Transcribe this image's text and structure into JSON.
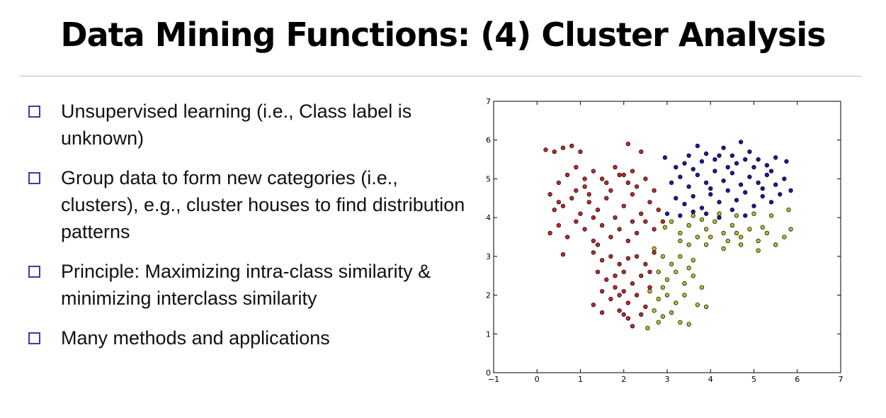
{
  "slide": {
    "title": "Data Mining Functions: (4) Cluster Analysis",
    "bullets": [
      "Unsupervised learning (i.e., Class label is unknown)",
      "Group data to form new categories (i.e., clusters), e.g., cluster houses to find distribution patterns",
      "Principle: Maximizing intra-class similarity & minimizing interclass similarity",
      "Many methods and applications"
    ],
    "bullet_icon": "hollow-square-icon"
  },
  "chart_data": {
    "type": "scatter",
    "title": "",
    "xlabel": "",
    "ylabel": "",
    "xlim": [
      -1,
      7
    ],
    "ylim": [
      0,
      7
    ],
    "xticks": [
      "−1",
      "0",
      "1",
      "2",
      "3",
      "4",
      "5",
      "6",
      "7"
    ],
    "yticks": [
      "0",
      "1",
      "2",
      "3",
      "4",
      "5",
      "6",
      "7"
    ],
    "grid": false,
    "legend": "none",
    "series": [
      {
        "color": "#c0282d",
        "points": [
          [
            0.2,
            5.75
          ],
          [
            0.4,
            5.7
          ],
          [
            0.6,
            5.8
          ],
          [
            0.8,
            5.85
          ],
          [
            1.0,
            5.7
          ],
          [
            2.1,
            5.9
          ],
          [
            2.4,
            5.7
          ],
          [
            0.3,
            4.6
          ],
          [
            0.5,
            4.9
          ],
          [
            0.7,
            5.1
          ],
          [
            0.9,
            5.3
          ],
          [
            1.1,
            4.8
          ],
          [
            1.3,
            5.2
          ],
          [
            1.5,
            5.0
          ],
          [
            1.7,
            4.7
          ],
          [
            1.9,
            5.1
          ],
          [
            2.1,
            4.9
          ],
          [
            2.3,
            4.8
          ],
          [
            2.5,
            5.0
          ],
          [
            0.4,
            4.2
          ],
          [
            0.6,
            4.3
          ],
          [
            0.8,
            4.5
          ],
          [
            1.0,
            4.1
          ],
          [
            1.2,
            4.4
          ],
          [
            1.4,
            4.2
          ],
          [
            1.6,
            4.5
          ],
          [
            1.8,
            4.0
          ],
          [
            2.0,
            4.3
          ],
          [
            2.2,
            4.6
          ],
          [
            2.4,
            4.1
          ],
          [
            2.6,
            4.4
          ],
          [
            0.3,
            3.6
          ],
          [
            0.5,
            3.8
          ],
          [
            0.7,
            3.5
          ],
          [
            0.9,
            3.9
          ],
          [
            1.1,
            3.7
          ],
          [
            1.3,
            3.4
          ],
          [
            1.5,
            3.8
          ],
          [
            1.7,
            3.5
          ],
          [
            1.9,
            3.7
          ],
          [
            2.1,
            3.4
          ],
          [
            2.3,
            3.6
          ],
          [
            2.5,
            3.9
          ],
          [
            2.7,
            3.7
          ],
          [
            2.9,
            3.9
          ],
          [
            0.6,
            3.05
          ],
          [
            1.3,
            3.1
          ],
          [
            1.5,
            2.9
          ],
          [
            1.7,
            3.0
          ],
          [
            1.9,
            2.8
          ],
          [
            2.1,
            2.95
          ],
          [
            2.3,
            3.0
          ],
          [
            2.5,
            2.8
          ],
          [
            2.7,
            3.1
          ],
          [
            1.4,
            2.6
          ],
          [
            1.6,
            2.4
          ],
          [
            1.8,
            2.5
          ],
          [
            2.0,
            2.6
          ],
          [
            2.2,
            2.3
          ],
          [
            2.4,
            2.5
          ],
          [
            2.6,
            2.2
          ],
          [
            1.5,
            2.1
          ],
          [
            1.7,
            1.9
          ],
          [
            1.9,
            2.0
          ],
          [
            2.1,
            1.8
          ],
          [
            2.3,
            2.0
          ],
          [
            2.5,
            1.7
          ],
          [
            1.3,
            1.75
          ],
          [
            1.5,
            1.55
          ],
          [
            1.9,
            1.6
          ],
          [
            2.0,
            1.5
          ],
          [
            2.1,
            1.4
          ],
          [
            2.2,
            1.2
          ],
          [
            2.4,
            1.5
          ],
          [
            1.2,
            4.6
          ],
          [
            1.6,
            4.9
          ],
          [
            1.8,
            5.3
          ],
          [
            2.0,
            5.1
          ],
          [
            0.9,
            4.7
          ],
          [
            1.4,
            3.3
          ],
          [
            2.2,
            3.9
          ],
          [
            1.8,
            2.2
          ],
          [
            2.0,
            2.1
          ],
          [
            2.6,
            2.6
          ],
          [
            1.1,
            5.0
          ],
          [
            1.3,
            4.0
          ],
          [
            0.5,
            4.4
          ],
          [
            2.7,
            4.7
          ],
          [
            2.8,
            4.2
          ],
          [
            2.2,
            5.2
          ]
        ]
      },
      {
        "color": "#1a1aa0",
        "points": [
          [
            2.95,
            5.55
          ],
          [
            3.2,
            5.3
          ],
          [
            3.5,
            5.6
          ],
          [
            3.7,
            5.85
          ],
          [
            3.9,
            5.65
          ],
          [
            4.1,
            5.5
          ],
          [
            4.3,
            5.8
          ],
          [
            4.5,
            5.6
          ],
          [
            4.7,
            5.95
          ],
          [
            4.9,
            5.7
          ],
          [
            5.1,
            5.5
          ],
          [
            5.3,
            5.35
          ],
          [
            5.5,
            5.55
          ],
          [
            5.75,
            5.45
          ],
          [
            3.1,
            4.9
          ],
          [
            3.3,
            5.05
          ],
          [
            3.5,
            4.8
          ],
          [
            3.7,
            5.1
          ],
          [
            3.9,
            4.9
          ],
          [
            4.1,
            5.2
          ],
          [
            4.3,
            4.95
          ],
          [
            4.5,
            5.15
          ],
          [
            4.7,
            4.85
          ],
          [
            4.9,
            5.05
          ],
          [
            5.1,
            4.9
          ],
          [
            5.3,
            5.1
          ],
          [
            5.5,
            4.85
          ],
          [
            5.7,
            5.0
          ],
          [
            3.2,
            4.5
          ],
          [
            3.4,
            4.35
          ],
          [
            3.6,
            4.55
          ],
          [
            3.8,
            4.25
          ],
          [
            4.0,
            4.6
          ],
          [
            4.2,
            4.4
          ],
          [
            4.4,
            4.7
          ],
          [
            4.6,
            4.45
          ],
          [
            4.8,
            4.65
          ],
          [
            5.0,
            4.3
          ],
          [
            5.2,
            4.55
          ],
          [
            5.4,
            4.4
          ],
          [
            5.6,
            4.6
          ],
          [
            5.85,
            4.7
          ],
          [
            3.0,
            4.1
          ],
          [
            3.3,
            4.05
          ],
          [
            3.6,
            4.15
          ],
          [
            3.9,
            4.1
          ],
          [
            4.2,
            4.0
          ],
          [
            4.5,
            4.2
          ],
          [
            4.8,
            4.05
          ],
          [
            3.4,
            5.4
          ],
          [
            3.8,
            5.45
          ],
          [
            4.2,
            5.6
          ],
          [
            4.6,
            5.4
          ],
          [
            5.0,
            5.3
          ],
          [
            5.4,
            5.2
          ],
          [
            4.4,
            5.3
          ],
          [
            3.6,
            5.25
          ],
          [
            4.0,
            4.75
          ],
          [
            4.8,
            5.5
          ],
          [
            5.2,
            4.75
          ]
        ]
      },
      {
        "color": "#b9b931",
        "points": [
          [
            2.95,
            3.75
          ],
          [
            3.1,
            3.9
          ],
          [
            3.3,
            3.6
          ],
          [
            3.5,
            3.8
          ],
          [
            3.7,
            3.5
          ],
          [
            3.9,
            3.7
          ],
          [
            4.1,
            3.9
          ],
          [
            4.3,
            3.6
          ],
          [
            4.5,
            3.8
          ],
          [
            4.7,
            3.5
          ],
          [
            4.9,
            3.7
          ],
          [
            5.1,
            3.4
          ],
          [
            5.3,
            3.6
          ],
          [
            5.5,
            3.3
          ],
          [
            5.7,
            3.5
          ],
          [
            5.85,
            3.7
          ],
          [
            3.6,
            4.05
          ],
          [
            3.8,
            3.95
          ],
          [
            4.2,
            4.1
          ],
          [
            4.6,
            4.05
          ],
          [
            5.0,
            4.1
          ],
          [
            5.4,
            4.05
          ],
          [
            5.8,
            4.2
          ],
          [
            3.9,
            3.3
          ],
          [
            4.3,
            3.2
          ],
          [
            4.7,
            3.3
          ],
          [
            5.1,
            3.15
          ],
          [
            2.7,
            3.2
          ],
          [
            2.9,
            3.0
          ],
          [
            3.1,
            2.8
          ],
          [
            3.3,
            3.0
          ],
          [
            3.5,
            2.7
          ],
          [
            2.8,
            2.6
          ],
          [
            3.0,
            2.4
          ],
          [
            3.2,
            2.6
          ],
          [
            3.4,
            2.3
          ],
          [
            3.6,
            2.5
          ],
          [
            3.8,
            2.2
          ],
          [
            2.6,
            2.1
          ],
          [
            2.8,
            1.9
          ],
          [
            3.0,
            2.0
          ],
          [
            3.2,
            1.8
          ],
          [
            3.4,
            2.0
          ],
          [
            3.7,
            1.75
          ],
          [
            3.9,
            1.7
          ],
          [
            2.7,
            1.6
          ],
          [
            2.9,
            1.45
          ],
          [
            3.1,
            1.55
          ],
          [
            3.3,
            1.3
          ],
          [
            3.5,
            1.25
          ],
          [
            2.55,
            1.15
          ],
          [
            2.8,
            1.3
          ],
          [
            3.3,
            3.4
          ],
          [
            3.5,
            3.3
          ],
          [
            2.9,
            2.2
          ],
          [
            3.6,
            2.9
          ],
          [
            4.0,
            3.5
          ],
          [
            4.4,
            3.4
          ],
          [
            5.2,
            3.75
          ],
          [
            4.6,
            3.6
          ]
        ]
      }
    ]
  }
}
